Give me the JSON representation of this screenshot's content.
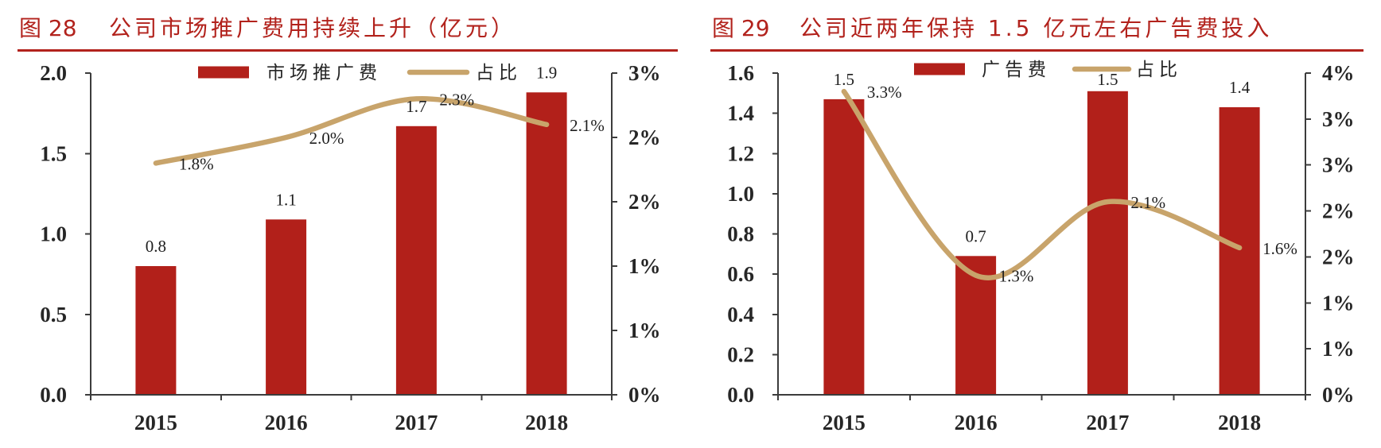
{
  "theme": {
    "accent": "#b2221c",
    "axis": "#3c3c3c",
    "text": "#262626"
  },
  "chart_data": [
    {
      "type": "bar",
      "figure_label": "图 28",
      "title": "公司市场推广费用持续上升（亿元）",
      "categories": [
        "2015",
        "2016",
        "2017",
        "2018"
      ],
      "series": [
        {
          "name": "市场推广费",
          "type": "bar",
          "y_axis": "left",
          "values": [
            0.8,
            1.09,
            1.67,
            1.88
          ],
          "labels": [
            "0.8",
            "1.1",
            "1.7",
            "1.9"
          ],
          "color": "#b2201a"
        },
        {
          "name": "占比",
          "type": "line",
          "y_axis": "right",
          "smooth": true,
          "values": [
            1.8,
            2.0,
            2.3,
            2.1
          ],
          "labels": [
            "1.8%",
            "2.0%",
            "2.3%",
            "2.1%"
          ],
          "color": "#c8a46b"
        }
      ],
      "ylim": [
        0,
        2.0
      ],
      "y_ticks": [
        0,
        0.5,
        1.0,
        1.5,
        2.0
      ],
      "y_tick_labels": [
        "0.0",
        "0.5",
        "1.0",
        "1.5",
        "2.0"
      ],
      "y2lim": [
        0,
        2.5
      ],
      "y2_ticks": [
        0,
        0.5,
        1.0,
        1.5,
        2.0,
        2.5
      ],
      "y2_tick_labels": [
        "0%",
        "1%",
        "1%",
        "2%",
        "2%",
        "3%"
      ],
      "grid": false,
      "legend": "top-center"
    },
    {
      "type": "bar",
      "figure_label": "图 29",
      "title": "公司近两年保持 1.5 亿元左右广告费投入",
      "categories": [
        "2015",
        "2016",
        "2017",
        "2018"
      ],
      "series": [
        {
          "name": "广告费",
          "type": "bar",
          "y_axis": "left",
          "values": [
            1.47,
            0.69,
            1.51,
            1.43
          ],
          "labels": [
            "1.5",
            "0.7",
            "1.5",
            "1.4"
          ],
          "color": "#b2201a"
        },
        {
          "name": "占比",
          "type": "line",
          "y_axis": "right",
          "smooth": true,
          "values": [
            3.3,
            1.3,
            2.1,
            1.6
          ],
          "labels": [
            "3.3%",
            "1.3%",
            "2.1%",
            "1.6%"
          ],
          "color": "#c8a46b"
        }
      ],
      "ylim": [
        0,
        1.6
      ],
      "y_ticks": [
        0,
        0.2,
        0.4,
        0.6,
        0.8,
        1.0,
        1.2,
        1.4,
        1.6
      ],
      "y_tick_labels": [
        "0.0",
        "0.2",
        "0.4",
        "0.6",
        "0.8",
        "1.0",
        "1.2",
        "1.4",
        "1.6"
      ],
      "y2lim": [
        0,
        3.5
      ],
      "y2_ticks": [
        0,
        0.5,
        1.0,
        1.5,
        2.0,
        2.5,
        3.0,
        3.5
      ],
      "y2_tick_labels": [
        "0%",
        "1%",
        "1%",
        "2%",
        "2%",
        "3%",
        "3%",
        "4%"
      ],
      "grid": false,
      "legend": "top-center"
    }
  ]
}
